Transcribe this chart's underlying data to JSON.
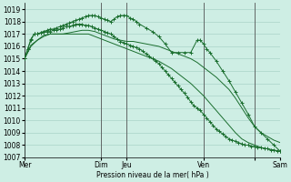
{
  "background_color": "#ceeee4",
  "grid_color": "#aad4c8",
  "line_color": "#1a6e2e",
  "ylabel": "Pression niveau de la mer( hPa )",
  "ylim": [
    1007,
    1019.5
  ],
  "yticks": [
    1007,
    1008,
    1009,
    1010,
    1011,
    1012,
    1013,
    1014,
    1015,
    1016,
    1017,
    1018,
    1019
  ],
  "series": [
    {
      "x": [
        0,
        6,
        12,
        18,
        24,
        30,
        36,
        42,
        48,
        54,
        60,
        66,
        72,
        78,
        84,
        90,
        96,
        102,
        108,
        114,
        120,
        126,
        132,
        138,
        144,
        150,
        156,
        162,
        168,
        174,
        180,
        186,
        192,
        198,
        204,
        210,
        216,
        222,
        228,
        234,
        240
      ],
      "y": [
        1015.0,
        1016.1,
        1016.5,
        1016.8,
        1017.0,
        1017.0,
        1017.0,
        1017.1,
        1017.2,
        1017.3,
        1017.3,
        1017.2,
        1017.0,
        1016.8,
        1016.6,
        1016.5,
        1016.4,
        1016.4,
        1016.3,
        1016.2,
        1016.1,
        1016.0,
        1015.8,
        1015.6,
        1015.4,
        1015.2,
        1015.0,
        1014.7,
        1014.3,
        1013.9,
        1013.5,
        1013.0,
        1012.5,
        1011.8,
        1011.0,
        1010.2,
        1009.5,
        1009.0,
        1008.7,
        1008.4,
        1008.2
      ],
      "marker": false
    },
    {
      "x": [
        0,
        6,
        12,
        18,
        24,
        30,
        36,
        42,
        48,
        54,
        60,
        66,
        72,
        78,
        84,
        90,
        96,
        102,
        108,
        114,
        120,
        126,
        132,
        138,
        144,
        150,
        156,
        162,
        168,
        174,
        180,
        186,
        192,
        198,
        204,
        210,
        216,
        222,
        228,
        234,
        240
      ],
      "y": [
        1015.0,
        1016.0,
        1016.5,
        1016.9,
        1017.0,
        1017.0,
        1017.0,
        1017.0,
        1017.0,
        1017.0,
        1017.0,
        1016.8,
        1016.6,
        1016.4,
        1016.2,
        1016.0,
        1015.8,
        1015.6,
        1015.4,
        1015.2,
        1015.0,
        1014.8,
        1014.5,
        1014.2,
        1013.8,
        1013.4,
        1013.0,
        1012.5,
        1012.0,
        1011.4,
        1010.8,
        1010.2,
        1009.6,
        1009.0,
        1008.5,
        1008.2,
        1008.0,
        1007.8,
        1007.7,
        1007.6,
        1007.5
      ],
      "marker": false
    },
    {
      "x": [
        0,
        3,
        6,
        9,
        12,
        15,
        18,
        21,
        24,
        27,
        30,
        33,
        36,
        39,
        42,
        45,
        48,
        51,
        54,
        57,
        60,
        63,
        66,
        69,
        72,
        75,
        78,
        81,
        84,
        87,
        90,
        93,
        96,
        99,
        102,
        105,
        108,
        111,
        114,
        117,
        120,
        123,
        126,
        129,
        132,
        135,
        138,
        141,
        144,
        147,
        150,
        153,
        156,
        159,
        162,
        165,
        168,
        171,
        174,
        177,
        180,
        183,
        186,
        189,
        192,
        195,
        198,
        201,
        204,
        207,
        210,
        213,
        216,
        219,
        222,
        225,
        228,
        231,
        234,
        237,
        240
      ],
      "y": [
        1015.0,
        1015.8,
        1016.6,
        1017.0,
        1017.0,
        1017.1,
        1017.2,
        1017.2,
        1017.2,
        1017.3,
        1017.3,
        1017.4,
        1017.5,
        1017.6,
        1017.6,
        1017.7,
        1017.8,
        1017.8,
        1017.8,
        1017.7,
        1017.7,
        1017.6,
        1017.5,
        1017.4,
        1017.3,
        1017.2,
        1017.1,
        1017.0,
        1016.8,
        1016.6,
        1016.4,
        1016.3,
        1016.2,
        1016.1,
        1016.0,
        1015.9,
        1015.8,
        1015.6,
        1015.4,
        1015.2,
        1015.0,
        1014.8,
        1014.6,
        1014.3,
        1014.0,
        1013.7,
        1013.4,
        1013.1,
        1012.8,
        1012.5,
        1012.2,
        1011.9,
        1011.5,
        1011.2,
        1011.0,
        1010.8,
        1010.5,
        1010.2,
        1009.9,
        1009.6,
        1009.3,
        1009.1,
        1008.9,
        1008.7,
        1008.5,
        1008.4,
        1008.3,
        1008.2,
        1008.1,
        1008.0,
        1008.0,
        1007.9,
        1007.9,
        1007.8,
        1007.8,
        1007.7,
        1007.7,
        1007.6,
        1007.6,
        1007.5,
        1007.5
      ],
      "marker": true
    },
    {
      "x": [
        0,
        3,
        6,
        9,
        12,
        15,
        18,
        21,
        24,
        27,
        30,
        33,
        36,
        39,
        42,
        45,
        48,
        51,
        54,
        57,
        60,
        63,
        66,
        69,
        72,
        75,
        78,
        81,
        84,
        87,
        90,
        93,
        96,
        99,
        102,
        105,
        108,
        114,
        120,
        126,
        132,
        138,
        144,
        150,
        156,
        162,
        165,
        168,
        171,
        174,
        180,
        186,
        192,
        198,
        204,
        210,
        216,
        222,
        228,
        234,
        240
      ],
      "y": [
        1015.0,
        1015.8,
        1016.5,
        1017.0,
        1017.0,
        1017.1,
        1017.2,
        1017.3,
        1017.4,
        1017.4,
        1017.5,
        1017.6,
        1017.7,
        1017.8,
        1017.9,
        1018.0,
        1018.1,
        1018.2,
        1018.3,
        1018.4,
        1018.5,
        1018.5,
        1018.5,
        1018.4,
        1018.3,
        1018.2,
        1018.1,
        1018.0,
        1018.2,
        1018.4,
        1018.5,
        1018.5,
        1018.5,
        1018.3,
        1018.2,
        1018.0,
        1017.8,
        1017.5,
        1017.2,
        1016.8,
        1016.2,
        1015.5,
        1015.5,
        1015.5,
        1015.5,
        1016.5,
        1016.5,
        1016.2,
        1015.8,
        1015.5,
        1014.8,
        1014.0,
        1013.2,
        1012.3,
        1011.4,
        1010.5,
        1009.5,
        1009.0,
        1008.5,
        1008.0,
        1007.5
      ],
      "marker": true
    }
  ],
  "vlines_x": [
    72,
    96,
    168,
    216
  ],
  "vlines_color": "#555555",
  "xtick_positions": [
    0,
    72,
    96,
    168,
    216,
    240
  ],
  "xtick_labels": [
    "Mer",
    "Dim",
    "Jeu",
    "Ven",
    "",
    "Sam"
  ],
  "figsize": [
    3.2,
    2.0
  ],
  "dpi": 100
}
